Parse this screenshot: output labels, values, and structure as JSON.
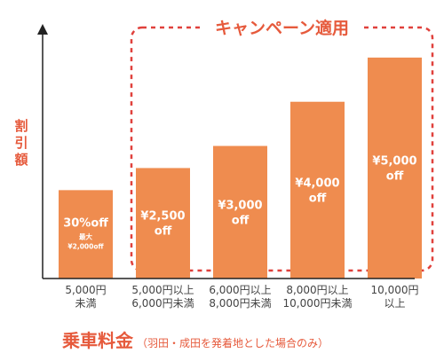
{
  "colors": {
    "bar": "#EF8C4F",
    "accent": "#E65A3C",
    "campaign_border": "#E0413C",
    "axis": "#222222"
  },
  "chart_data": {
    "type": "bar",
    "ylabel": "割引額",
    "campaign_label": "キャンペーン適用",
    "xlabel": "乗車料金",
    "xlabel_note": "（羽田・成田を発着地とした場合のみ）",
    "categories": [
      [
        "5,000円",
        "未満"
      ],
      [
        "5,000円以上",
        "6,000円未満"
      ],
      [
        "6,000円以上",
        "8,000円未満"
      ],
      [
        "8,000円以上",
        "10,000円未満"
      ],
      [
        "10,000円",
        "以上"
      ]
    ],
    "values": [
      2000,
      2500,
      3000,
      4000,
      5000
    ],
    "data_labels": [
      {
        "main": [
          "30%off"
        ],
        "sub": [
          "最大",
          "¥2,000off"
        ]
      },
      {
        "main": [
          "¥2,500",
          "off"
        ]
      },
      {
        "main": [
          "¥3,000",
          "off"
        ]
      },
      {
        "main": [
          "¥4,000",
          "off"
        ]
      },
      {
        "main": [
          "¥5,000",
          "off"
        ]
      }
    ],
    "ylim": [
      0,
      5500
    ],
    "campaign_range": [
      1,
      4
    ]
  }
}
